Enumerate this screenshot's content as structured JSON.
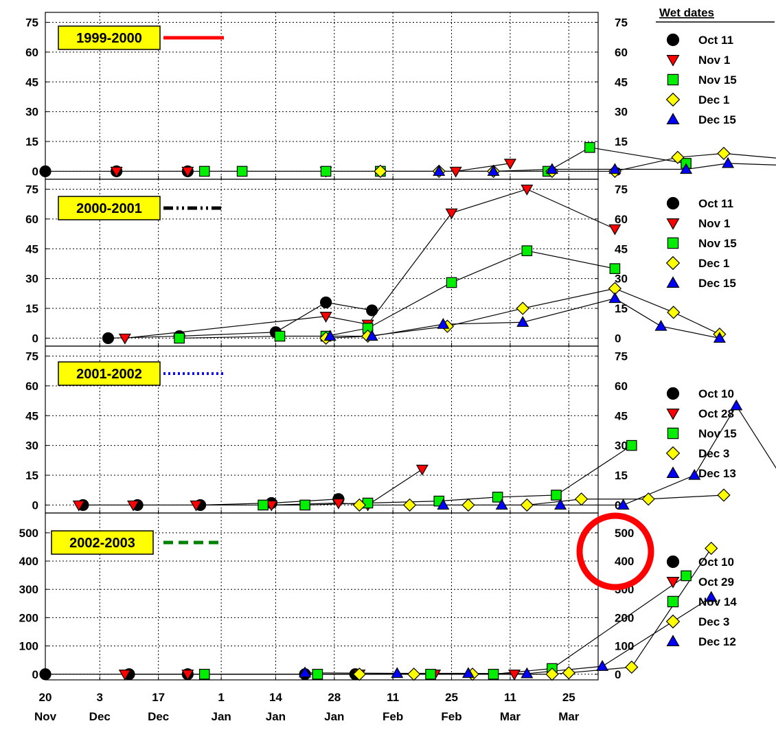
{
  "legend_title": "Wet dates",
  "x_ticks": [
    {
      "day": "20",
      "month": "Nov",
      "d": 0
    },
    {
      "day": "3",
      "month": "Dec",
      "d": 13
    },
    {
      "day": "17",
      "month": "Dec",
      "d": 27
    },
    {
      "day": "1",
      "month": "Jan",
      "d": 42
    },
    {
      "day": "14",
      "month": "Jan",
      "d": 55
    },
    {
      "day": "28",
      "month": "Jan",
      "d": 69
    },
    {
      "day": "11",
      "month": "Feb",
      "d": 83
    },
    {
      "day": "25",
      "month": "Feb",
      "d": 97
    },
    {
      "day": "11",
      "month": "Mar",
      "d": 111
    },
    {
      "day": "25",
      "month": "Mar",
      "d": 125
    }
  ],
  "marker_styles": {
    "circle": {
      "fill": "#000000"
    },
    "tri_down": {
      "fill": "#ff0000"
    },
    "square": {
      "fill": "#00ee00"
    },
    "diamond": {
      "fill": "#ffff00"
    },
    "tri_up": {
      "fill": "#0000ff"
    }
  },
  "annotation": {
    "type": "circle",
    "color": "#ff0000",
    "target": "panel 4 right axis labels 500 and 400"
  },
  "chart_data": [
    {
      "type": "line",
      "season": "1999-2000",
      "season_line": {
        "color": "#ff0000",
        "style": "solid"
      },
      "x_unit": "days since 20 Nov",
      "y_ticks": [
        0,
        15,
        30,
        45,
        60,
        75
      ],
      "ylim": [
        -4,
        80
      ],
      "grid": true,
      "legend_position": "right",
      "series": [
        {
          "name": "Oct 11",
          "marker": "circle",
          "points": [
            [
              0,
              0
            ],
            [
              17,
              0
            ],
            [
              34,
              0
            ]
          ]
        },
        {
          "name": "Nov 1",
          "marker": "tri_down",
          "points": [
            [
              17,
              0
            ],
            [
              34,
              0
            ],
            [
              67,
              0
            ],
            [
              98,
              0
            ],
            [
              111,
              4
            ]
          ]
        },
        {
          "name": "Nov 15",
          "marker": "square",
          "points": [
            [
              38,
              0
            ],
            [
              47,
              0
            ],
            [
              67,
              0
            ],
            [
              80,
              0
            ],
            [
              120,
              0
            ],
            [
              130,
              12
            ],
            [
              153,
              4
            ]
          ]
        },
        {
          "name": "Dec 1",
          "marker": "diamond",
          "points": [
            [
              80,
              0
            ],
            [
              94,
              0
            ],
            [
              107,
              0
            ],
            [
              121,
              0
            ],
            [
              136,
              0
            ],
            [
              151,
              7
            ],
            [
              162,
              9
            ],
            [
              178,
              6
            ],
            [
              200,
              0
            ]
          ]
        },
        {
          "name": "Dec 15",
          "marker": "tri_up",
          "points": [
            [
              94,
              0
            ],
            [
              107,
              0
            ],
            [
              121,
              1
            ],
            [
              136,
              1
            ],
            [
              153,
              1
            ],
            [
              163,
              4
            ],
            [
              177,
              3
            ],
            [
              206,
              0
            ]
          ]
        }
      ]
    },
    {
      "type": "line",
      "season": "2000-2001",
      "season_line": {
        "color": "#000000",
        "style": "dashdot"
      },
      "x_unit": "days since 20 Nov",
      "y_ticks": [
        0,
        15,
        30,
        45,
        60,
        75
      ],
      "ylim": [
        -4,
        80
      ],
      "grid": true,
      "legend_position": "right",
      "series": [
        {
          "name": "Oct 11",
          "marker": "circle",
          "points": [
            [
              15,
              0
            ],
            [
              32,
              1
            ],
            [
              55,
              3
            ],
            [
              67,
              18
            ],
            [
              78,
              14
            ]
          ]
        },
        {
          "name": "Nov 1",
          "marker": "tri_down",
          "points": [
            [
              19,
              0
            ],
            [
              67,
              11
            ],
            [
              77,
              7
            ],
            [
              97,
              63
            ],
            [
              115,
              75
            ],
            [
              136,
              55
            ]
          ]
        },
        {
          "name": "Nov 15",
          "marker": "square",
          "points": [
            [
              32,
              0
            ],
            [
              56,
              1
            ],
            [
              67,
              1
            ],
            [
              77,
              5
            ],
            [
              97,
              28
            ],
            [
              115,
              44
            ],
            [
              136,
              35
            ]
          ]
        },
        {
          "name": "Dec 1",
          "marker": "diamond",
          "points": [
            [
              67,
              0
            ],
            [
              77,
              1
            ],
            [
              96,
              6
            ],
            [
              114,
              15
            ],
            [
              136,
              25
            ],
            [
              150,
              13
            ],
            [
              161,
              2
            ]
          ]
        },
        {
          "name": "Dec 15",
          "marker": "tri_up",
          "points": [
            [
              68,
              1
            ],
            [
              78,
              1
            ],
            [
              95,
              7
            ],
            [
              114,
              8
            ],
            [
              136,
              20
            ],
            [
              147,
              6
            ],
            [
              161,
              0
            ]
          ]
        }
      ]
    },
    {
      "type": "line",
      "season": "2001-2002",
      "season_line": {
        "color": "#0000ff",
        "style": "dotted"
      },
      "x_unit": "days since 20 Nov",
      "y_ticks": [
        0,
        15,
        30,
        45,
        60,
        75
      ],
      "ylim": [
        -4,
        80
      ],
      "grid": true,
      "legend_position": "right",
      "series": [
        {
          "name": "Oct 10",
          "marker": "circle",
          "points": [
            [
              9,
              0
            ],
            [
              22,
              0
            ],
            [
              37,
              0
            ],
            [
              54,
              1
            ],
            [
              70,
              3
            ]
          ]
        },
        {
          "name": "Oct 28",
          "marker": "tri_down",
          "points": [
            [
              8,
              0
            ],
            [
              21,
              0
            ],
            [
              36,
              0
            ],
            [
              54,
              0
            ],
            [
              70,
              1
            ],
            [
              77,
              0
            ],
            [
              90,
              18
            ]
          ]
        },
        {
          "name": "Nov 15",
          "marker": "square",
          "points": [
            [
              52,
              0
            ],
            [
              62,
              0
            ],
            [
              77,
              1
            ],
            [
              94,
              2
            ],
            [
              108,
              4
            ],
            [
              122,
              5
            ],
            [
              140,
              30
            ]
          ]
        },
        {
          "name": "Dec 3",
          "marker": "diamond",
          "points": [
            [
              75,
              0
            ],
            [
              87,
              0
            ],
            [
              101,
              0
            ],
            [
              115,
              0
            ],
            [
              128,
              3
            ],
            [
              144,
              3
            ],
            [
              162,
              5
            ]
          ]
        },
        {
          "name": "Dec 13",
          "marker": "tri_up",
          "points": [
            [
              95,
              0
            ],
            [
              109,
              0
            ],
            [
              123,
              0
            ],
            [
              138,
              0
            ],
            [
              155,
              15
            ],
            [
              165,
              50
            ],
            [
              178,
              7
            ]
          ]
        }
      ]
    },
    {
      "type": "line",
      "season": "2002-2003",
      "season_line": {
        "color": "#008000",
        "style": "dashed"
      },
      "x_unit": "days since 20 Nov",
      "y_ticks": [
        0,
        100,
        200,
        300,
        400,
        500
      ],
      "ylim": [
        -20,
        570
      ],
      "grid": true,
      "legend_position": "right",
      "series": [
        {
          "name": "Oct 10",
          "marker": "circle",
          "points": [
            [
              0,
              0
            ],
            [
              20,
              0
            ],
            [
              34,
              0
            ],
            [
              62,
              0
            ],
            [
              74,
              0
            ]
          ]
        },
        {
          "name": "Oct 29",
          "marker": "tri_down",
          "points": [
            [
              19,
              0
            ],
            [
              34,
              0
            ],
            [
              75,
              0
            ],
            [
              93,
              0
            ],
            [
              112,
              0
            ]
          ]
        },
        {
          "name": "Nov 14",
          "marker": "square",
          "points": [
            [
              38,
              0
            ],
            [
              65,
              0
            ],
            [
              92,
              0
            ],
            [
              107,
              0
            ],
            [
              121,
              20
            ],
            [
              153,
              348
            ]
          ]
        },
        {
          "name": "Dec 3",
          "marker": "diamond",
          "points": [
            [
              75,
              0
            ],
            [
              88,
              0
            ],
            [
              102,
              0
            ],
            [
              121,
              0
            ],
            [
              125,
              5
            ],
            [
              140,
              25
            ],
            [
              159,
              445
            ]
          ]
        },
        {
          "name": "Dec 12",
          "marker": "tri_up",
          "points": [
            [
              62,
              5
            ],
            [
              84,
              3
            ],
            [
              101,
              3
            ],
            [
              115,
              2
            ],
            [
              133,
              28
            ],
            [
              159,
              272
            ]
          ]
        }
      ]
    }
  ]
}
